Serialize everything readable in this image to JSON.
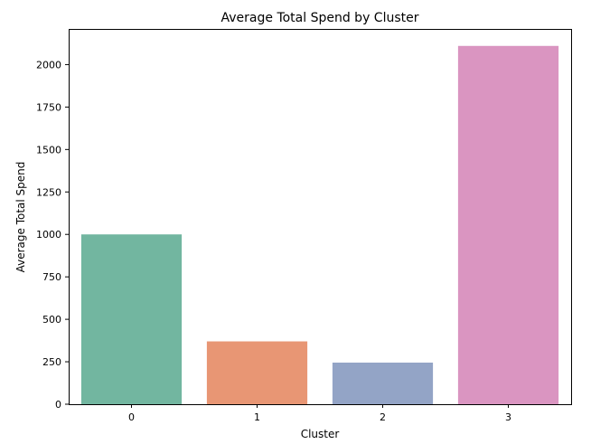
{
  "chart_data": {
    "type": "bar",
    "title": "Average Total Spend by Cluster",
    "xlabel": "Cluster",
    "ylabel": "Average Total Spend",
    "categories": [
      "0",
      "1",
      "2",
      "3"
    ],
    "values": [
      1000,
      370,
      245,
      2110
    ],
    "ylim": [
      0,
      2210
    ],
    "yticks": [
      0,
      250,
      500,
      750,
      1000,
      1250,
      1500,
      1750,
      2000
    ],
    "grid": false,
    "legend": "none",
    "colors": [
      "#72b6a0",
      "#e89674",
      "#93a4c6",
      "#da95c1"
    ]
  }
}
